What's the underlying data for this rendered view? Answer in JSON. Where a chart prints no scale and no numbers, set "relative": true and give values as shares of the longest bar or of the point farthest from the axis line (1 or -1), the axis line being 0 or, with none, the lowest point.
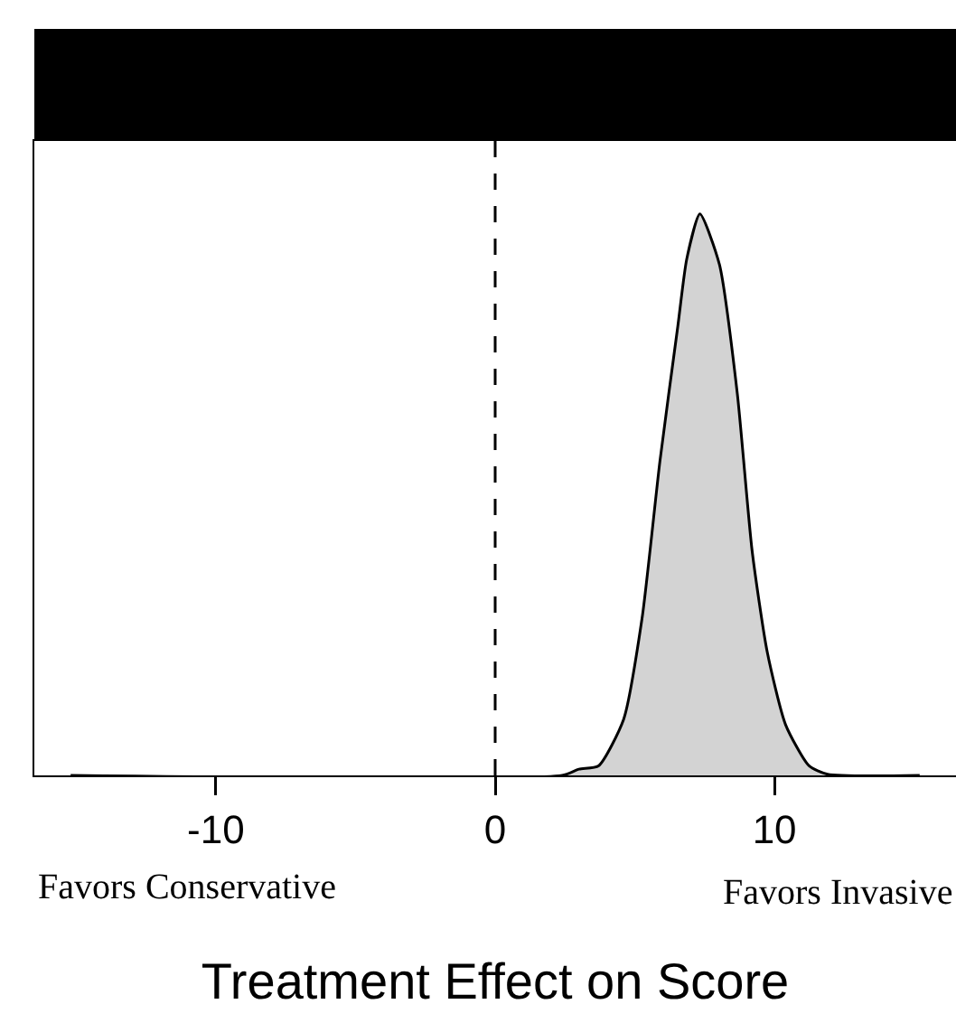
{
  "chart_data": {
    "type": "area",
    "relative": true,
    "xlabel": "Treatment Effect on Score",
    "annotations": [
      "Favors Conservative",
      "Favors Invasive"
    ],
    "xlim": [
      -16.5,
      16.5
    ],
    "xticks": [
      -10,
      0,
      10
    ],
    "tick_labels": "x",
    "grid": false,
    "ref_lines": [
      {
        "axis": "x",
        "value": 0,
        "color": "#000000",
        "line_style": "dashed"
      }
    ],
    "series": [
      {
        "color": "#d3d3d3",
        "x": [
          -15.2,
          2.4,
          3.0,
          3.7,
          4.6,
          5.26,
          5.9,
          6.54,
          6.86,
          7.33,
          8.03,
          8.67,
          9.2,
          9.74,
          10.4,
          11.24,
          11.9,
          15.2
        ],
        "values": [
          0,
          0,
          0.011,
          0.017,
          0.1,
          0.28,
          0.56,
          0.8,
          0.92,
          1,
          0.91,
          0.68,
          0.4,
          0.22,
          0.09,
          0.017,
          0.002,
          0
        ]
      }
    ]
  }
}
